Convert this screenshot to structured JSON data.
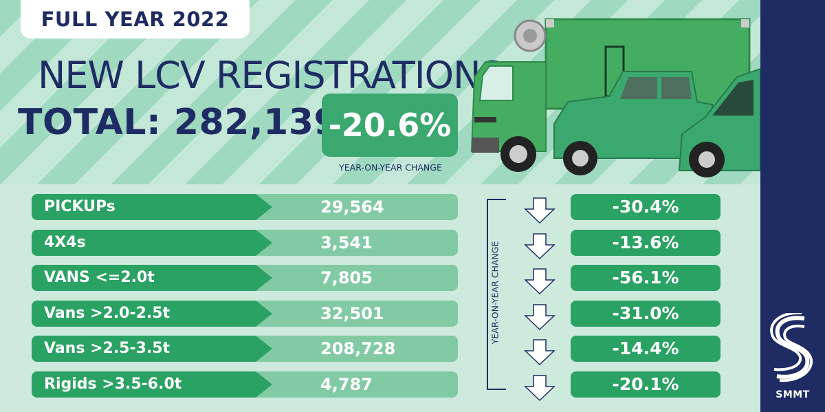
{
  "badge": "FULL YEAR 2022",
  "headline": "NEW LCV REGISTRATIONS",
  "total": "TOTAL: 282,139",
  "yoy": {
    "value": "-20.6%",
    "caption": "YEAR-ON-YEAR CHANGE"
  },
  "rows": [
    {
      "label": "PICKUPs",
      "value": "29,564",
      "change": "-30.4%"
    },
    {
      "label": "4X4s",
      "value": "3,541",
      "change": "-13.6%"
    },
    {
      "label": "VANS <=2.0t",
      "value": "7,805",
      "change": "-56.1%"
    },
    {
      "label": "Vans >2.0-2.5t",
      "value": "32,501",
      "change": "-31.0%"
    },
    {
      "label": "Vans >2.5-3.5t",
      "value": "208,728",
      "change": "-14.4%"
    },
    {
      "label": "Rigids >3.5-6.0t",
      "value": "4,787",
      "change": "-20.1%"
    }
  ],
  "vertical_caption": "YEAR-ON-YEAR CHANGE",
  "logo_text": "SMMT",
  "colors": {
    "navy": "#1f2c63",
    "green": "#2aa264",
    "light_green": "#82caa4",
    "bg": "#cdeadc"
  }
}
